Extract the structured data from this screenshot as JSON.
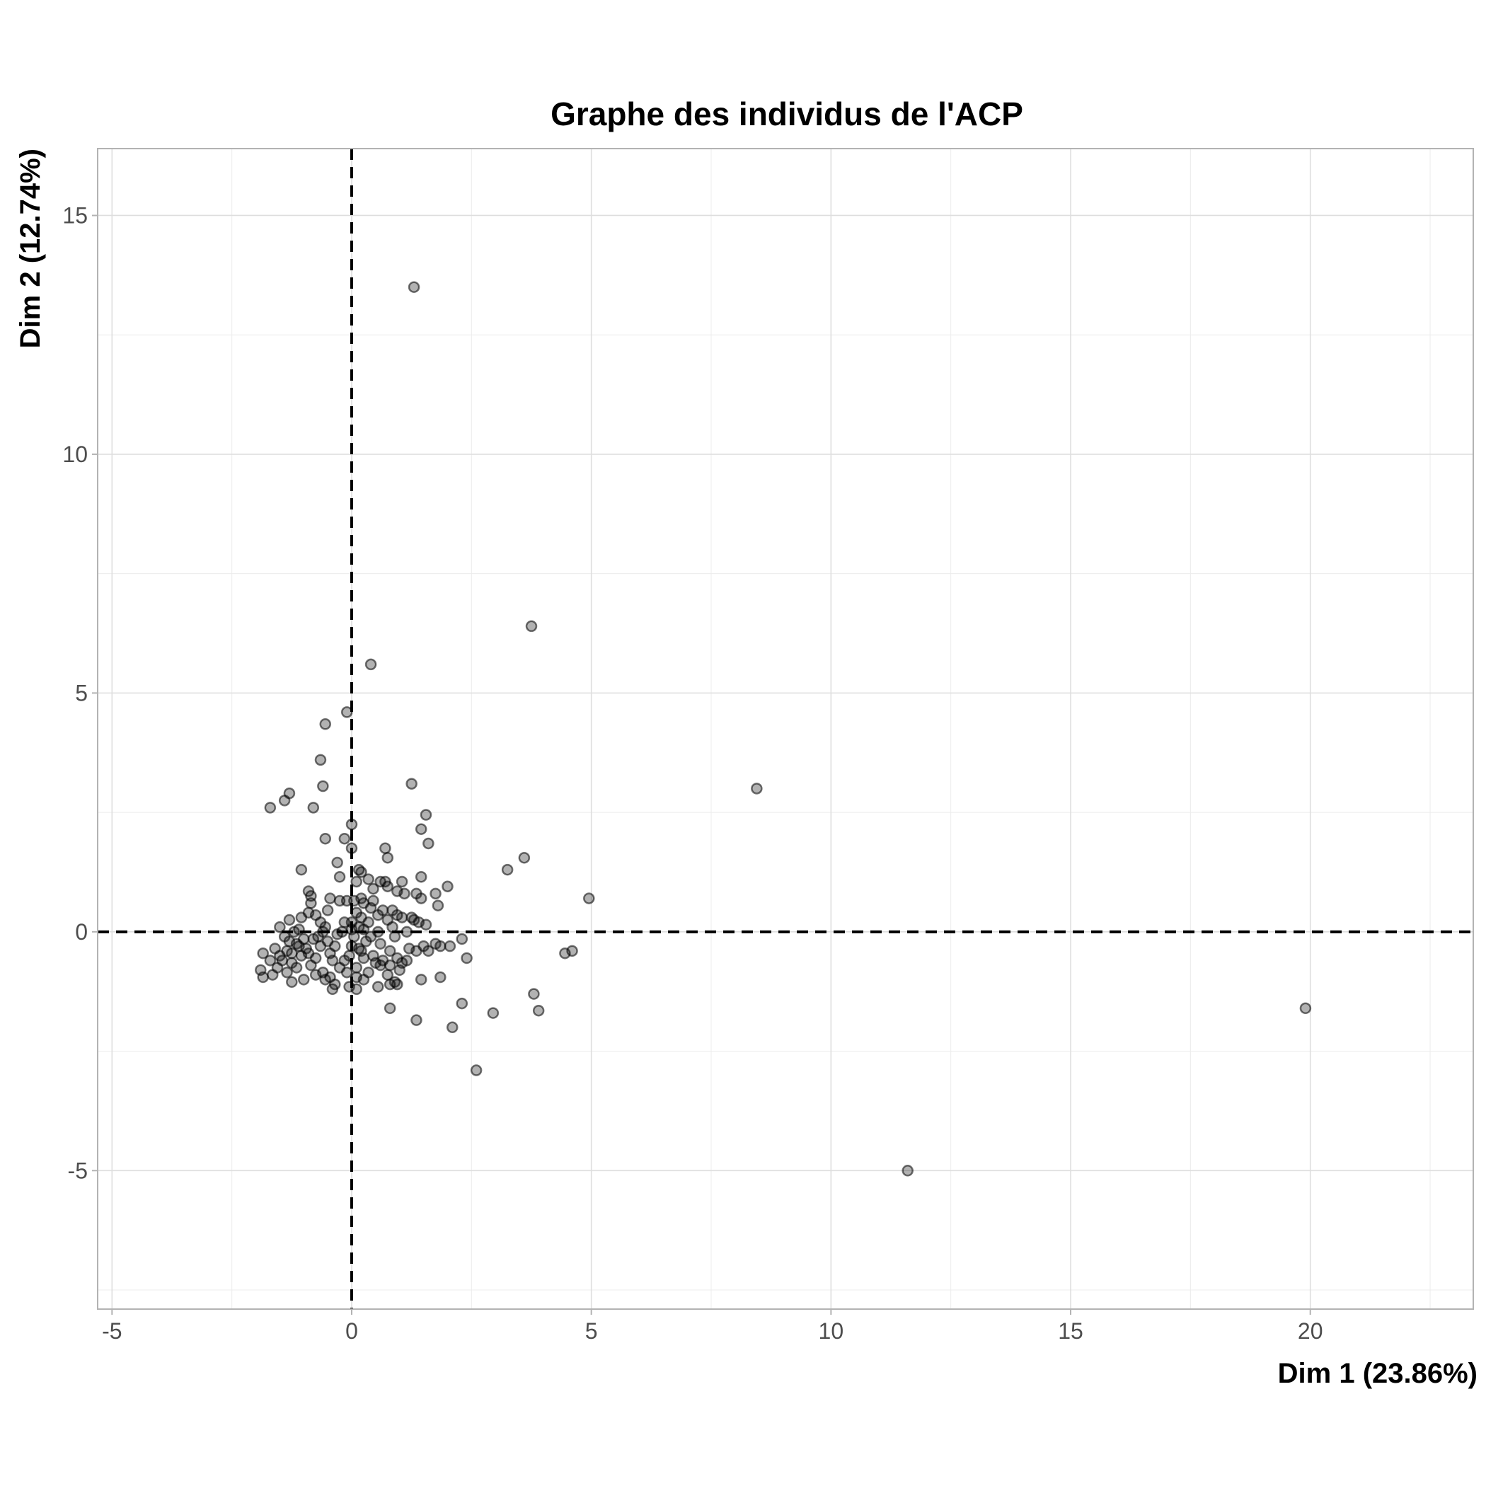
{
  "chart_data": {
    "type": "scatter",
    "title": "Graphe des individus de l'ACP",
    "xlabel": "Dim 1 (23.86%)",
    "ylabel": "Dim 2 (12.74%)",
    "xlim": [
      -5.3,
      23.4
    ],
    "ylim": [
      -7.9,
      16.4
    ],
    "xticks": [
      -5,
      0,
      5,
      10,
      15,
      20
    ],
    "yticks": [
      -5,
      0,
      5,
      10,
      15
    ],
    "xtick_labels": [
      "-5",
      "0",
      "5",
      "10",
      "15",
      "20"
    ],
    "ytick_labels": [
      "-5",
      "0",
      "5",
      "10",
      "15"
    ],
    "grid": true,
    "reference_lines": {
      "x": 0,
      "y": 0
    },
    "point_color": "#000000",
    "point_alpha": 0.3,
    "points": [
      [
        1.3,
        13.5
      ],
      [
        3.75,
        6.4
      ],
      [
        0.4,
        5.6
      ],
      [
        -0.1,
        4.6
      ],
      [
        -0.55,
        4.35
      ],
      [
        -0.65,
        3.6
      ],
      [
        -0.6,
        3.05
      ],
      [
        1.25,
        3.1
      ],
      [
        -1.3,
        2.9
      ],
      [
        -1.4,
        2.75
      ],
      [
        -1.7,
        2.6
      ],
      [
        -0.8,
        2.6
      ],
      [
        1.55,
        2.45
      ],
      [
        0.0,
        2.25
      ],
      [
        1.45,
        2.15
      ],
      [
        -0.55,
        1.95
      ],
      [
        -0.15,
        1.95
      ],
      [
        1.6,
        1.85
      ],
      [
        0.7,
        1.75
      ],
      [
        0.0,
        1.75
      ],
      [
        3.6,
        1.55
      ],
      [
        0.75,
        1.55
      ],
      [
        -0.3,
        1.45
      ],
      [
        3.25,
        1.3
      ],
      [
        -1.05,
        1.3
      ],
      [
        0.15,
        1.3
      ],
      [
        0.2,
        1.25
      ],
      [
        -0.25,
        1.15
      ],
      [
        1.45,
        1.15
      ],
      [
        0.35,
        1.1
      ],
      [
        0.6,
        1.05
      ],
      [
        0.1,
        1.05
      ],
      [
        1.05,
        1.05
      ],
      [
        0.7,
        1.05
      ],
      [
        2.0,
        0.95
      ],
      [
        0.75,
        0.95
      ],
      [
        -0.9,
        0.85
      ],
      [
        0.45,
        0.9
      ],
      [
        0.95,
        0.85
      ],
      [
        1.1,
        0.8
      ],
      [
        1.35,
        0.8
      ],
      [
        1.75,
        0.8
      ],
      [
        -0.85,
        0.75
      ],
      [
        -0.45,
        0.7
      ],
      [
        0.2,
        0.7
      ],
      [
        4.95,
        0.7
      ],
      [
        1.45,
        0.7
      ],
      [
        0.45,
        0.65
      ],
      [
        -0.85,
        0.6
      ],
      [
        -0.25,
        0.65
      ],
      [
        -0.1,
        0.65
      ],
      [
        0.05,
        0.65
      ],
      [
        0.25,
        0.6
      ],
      [
        1.8,
        0.55
      ],
      [
        0.4,
        0.5
      ],
      [
        0.85,
        0.45
      ],
      [
        0.65,
        0.45
      ],
      [
        -0.5,
        0.45
      ],
      [
        -0.9,
        0.4
      ],
      [
        0.1,
        0.4
      ],
      [
        0.55,
        0.35
      ],
      [
        -0.75,
        0.35
      ],
      [
        0.95,
        0.35
      ],
      [
        1.05,
        0.3
      ],
      [
        0.2,
        0.3
      ],
      [
        -1.05,
        0.3
      ],
      [
        1.25,
        0.3
      ],
      [
        -1.3,
        0.25
      ],
      [
        0.75,
        0.25
      ],
      [
        1.3,
        0.25
      ],
      [
        0.35,
        0.2
      ],
      [
        -0.65,
        0.2
      ],
      [
        -0.15,
        0.2
      ],
      [
        1.4,
        0.2
      ],
      [
        0.0,
        0.2
      ],
      [
        1.55,
        0.15
      ],
      [
        -1.5,
        0.1
      ],
      [
        -0.55,
        0.1
      ],
      [
        0.85,
        0.1
      ],
      [
        -1.1,
        0.05
      ],
      [
        0.25,
        0.05
      ],
      [
        0.55,
        0.0
      ],
      [
        1.15,
        0.0
      ],
      [
        -0.3,
        -0.05
      ],
      [
        -1.4,
        -0.1
      ],
      [
        0.05,
        -0.1
      ],
      [
        0.9,
        -0.1
      ],
      [
        -0.8,
        -0.15
      ],
      [
        2.3,
        -0.15
      ],
      [
        -1.3,
        -0.2
      ],
      [
        0.3,
        -0.2
      ],
      [
        -0.5,
        -0.2
      ],
      [
        1.75,
        -0.25
      ],
      [
        -1.15,
        -0.25
      ],
      [
        0.6,
        -0.25
      ],
      [
        2.05,
        -0.3
      ],
      [
        1.5,
        -0.3
      ],
      [
        1.85,
        -0.3
      ],
      [
        -1.6,
        -0.35
      ],
      [
        1.2,
        -0.35
      ],
      [
        0.15,
        -0.35
      ],
      [
        -0.95,
        -0.35
      ],
      [
        4.6,
        -0.4
      ],
      [
        1.35,
        -0.4
      ],
      [
        0.8,
        -0.4
      ],
      [
        -1.25,
        -0.45
      ],
      [
        1.6,
        -0.4
      ],
      [
        -1.85,
        -0.45
      ],
      [
        4.45,
        -0.45
      ],
      [
        -0.45,
        -0.45
      ],
      [
        0.45,
        -0.5
      ],
      [
        -1.05,
        -0.5
      ],
      [
        2.4,
        -0.55
      ],
      [
        -0.75,
        -0.55
      ],
      [
        0.95,
        -0.55
      ],
      [
        0.25,
        -0.55
      ],
      [
        -1.45,
        -0.6
      ],
      [
        -0.4,
        -0.6
      ],
      [
        0.65,
        -0.6
      ],
      [
        1.15,
        -0.6
      ],
      [
        -0.15,
        -0.6
      ],
      [
        1.05,
        -0.65
      ],
      [
        -1.25,
        -0.65
      ],
      [
        0.5,
        -0.65
      ],
      [
        -0.85,
        -0.7
      ],
      [
        0.8,
        -0.7
      ],
      [
        -1.55,
        -0.75
      ],
      [
        0.1,
        -0.75
      ],
      [
        -0.25,
        -0.75
      ],
      [
        -1.9,
        -0.8
      ],
      [
        1.0,
        -0.8
      ],
      [
        -0.6,
        -0.85
      ],
      [
        -1.35,
        -0.85
      ],
      [
        0.35,
        -0.85
      ],
      [
        -0.1,
        -0.85
      ],
      [
        -1.65,
        -0.9
      ],
      [
        0.75,
        -0.9
      ],
      [
        -0.45,
        -0.95
      ],
      [
        1.85,
        -0.95
      ],
      [
        0.1,
        -0.95
      ],
      [
        -1.85,
        -0.95
      ],
      [
        0.25,
        -1.0
      ],
      [
        -1.0,
        -1.0
      ],
      [
        -0.55,
        -1.0
      ],
      [
        1.45,
        -1.0
      ],
      [
        0.9,
        -1.05
      ],
      [
        -1.25,
        -1.05
      ],
      [
        -0.35,
        -1.1
      ],
      [
        0.8,
        -1.1
      ],
      [
        0.95,
        -1.1
      ],
      [
        0.55,
        -1.15
      ],
      [
        -0.05,
        -1.15
      ],
      [
        0.1,
        -1.2
      ],
      [
        -0.4,
        -1.2
      ],
      [
        3.8,
        -1.3
      ],
      [
        2.3,
        -1.5
      ],
      [
        0.8,
        -1.6
      ],
      [
        19.9,
        -1.6
      ],
      [
        3.9,
        -1.65
      ],
      [
        2.95,
        -1.7
      ],
      [
        1.35,
        -1.85
      ],
      [
        2.1,
        -2.0
      ],
      [
        2.6,
        -2.9
      ],
      [
        11.6,
        -5.0
      ],
      [
        8.45,
        3.0
      ],
      [
        -1.1,
        -0.3
      ],
      [
        -1.0,
        -0.15
      ],
      [
        -0.7,
        -0.1
      ],
      [
        -0.6,
        0.0
      ],
      [
        -0.35,
        -0.3
      ],
      [
        -0.2,
        0.0
      ],
      [
        0.0,
        0.05
      ],
      [
        -1.2,
        0.0
      ],
      [
        -1.35,
        -0.4
      ],
      [
        -0.9,
        -0.45
      ],
      [
        -0.65,
        -0.3
      ],
      [
        0.4,
        -0.1
      ],
      [
        0.2,
        -0.4
      ],
      [
        -0.05,
        -0.5
      ],
      [
        0.6,
        -0.7
      ],
      [
        -1.5,
        -0.5
      ],
      [
        -1.7,
        -0.6
      ],
      [
        -1.15,
        -0.75
      ],
      [
        -0.75,
        -0.9
      ],
      [
        0.0,
        -0.3
      ],
      [
        0.15,
        0.1
      ]
    ]
  }
}
